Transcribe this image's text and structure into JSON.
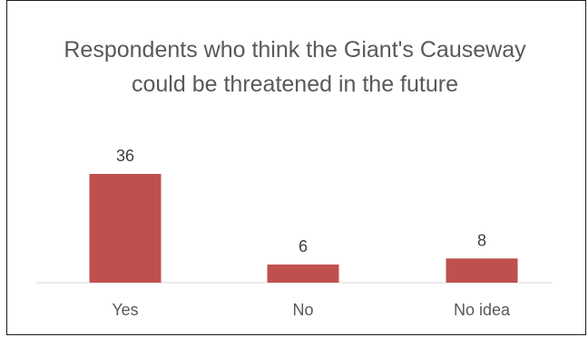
{
  "chart_data": {
    "type": "bar",
    "title": "Respondents who think the Giant's Causeway could be threatened in the future",
    "categories": [
      "Yes",
      "No",
      "No idea"
    ],
    "values": [
      36,
      6,
      8
    ],
    "xlabel": "",
    "ylabel": "",
    "ylim": [
      0,
      36
    ],
    "grid": false,
    "legend": "none",
    "bar_color": "#c0504d",
    "show_data_labels": true
  }
}
